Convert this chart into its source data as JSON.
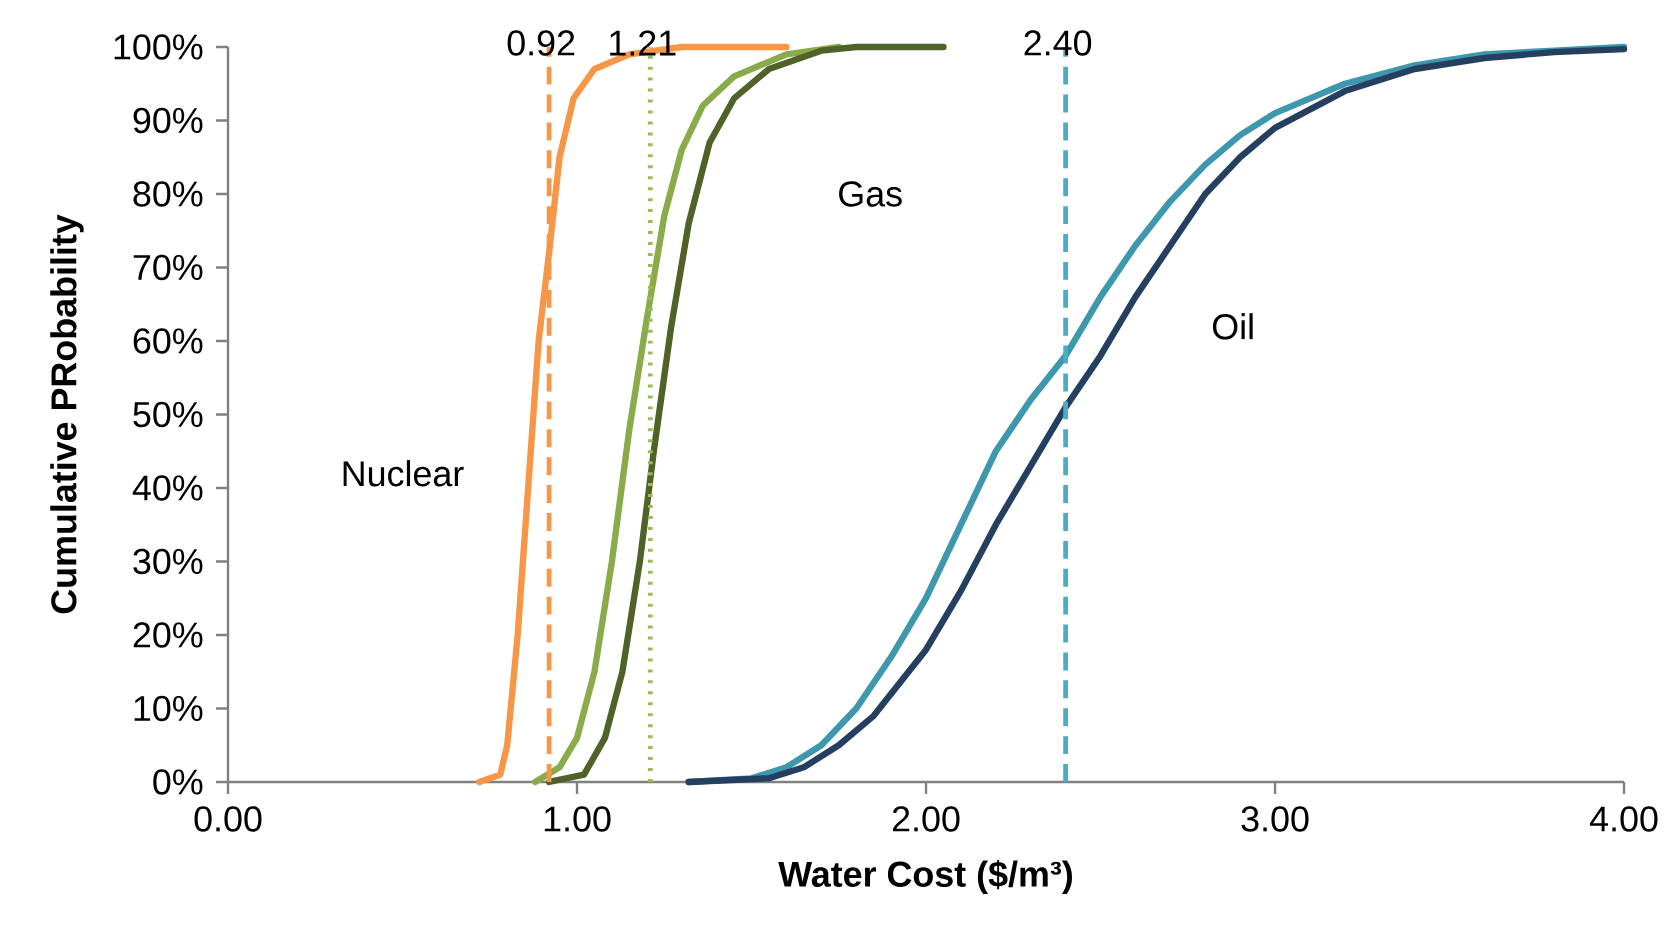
{
  "chart_data": {
    "type": "line",
    "xlabel": "Water Cost ($/m³)",
    "ylabel": "Cumulative PRobability",
    "xlim": [
      0,
      4
    ],
    "ylim": [
      0,
      100
    ],
    "xticks": [
      {
        "value": 0,
        "label": "0.00"
      },
      {
        "value": 1,
        "label": "1.00"
      },
      {
        "value": 2,
        "label": "2.00"
      },
      {
        "value": 3,
        "label": "3.00"
      },
      {
        "value": 4,
        "label": "4.00"
      }
    ],
    "yticks": [
      {
        "value": 0,
        "label": "0%"
      },
      {
        "value": 10,
        "label": "10%"
      },
      {
        "value": 20,
        "label": "20%"
      },
      {
        "value": 30,
        "label": "30%"
      },
      {
        "value": 40,
        "label": "40%"
      },
      {
        "value": 50,
        "label": "50%"
      },
      {
        "value": 60,
        "label": "60%"
      },
      {
        "value": 70,
        "label": "70%"
      },
      {
        "value": 80,
        "label": "80%"
      },
      {
        "value": 90,
        "label": "90%"
      },
      {
        "value": 100,
        "label": "100%"
      }
    ],
    "grid": false,
    "marker": "none",
    "line_style": "solid",
    "series": [
      {
        "color": "#f79646",
        "x": [
          0.72,
          0.78,
          0.8,
          0.83,
          0.86,
          0.89,
          0.92,
          0.95,
          0.99,
          1.05,
          1.15,
          1.3,
          1.6
        ],
        "values": [
          0,
          1,
          5,
          20,
          40,
          60,
          72,
          85,
          93,
          97,
          99,
          100,
          100
        ]
      },
      {
        "color": "#8aab4a",
        "x": [
          0.88,
          0.95,
          1.0,
          1.05,
          1.1,
          1.15,
          1.2,
          1.25,
          1.3,
          1.36,
          1.45,
          1.6,
          1.75
        ],
        "values": [
          0,
          2,
          6,
          15,
          30,
          48,
          63,
          77,
          86,
          92,
          96,
          99,
          100
        ]
      },
      {
        "color": "#4f6228",
        "x": [
          0.92,
          1.02,
          1.08,
          1.13,
          1.18,
          1.22,
          1.27,
          1.32,
          1.38,
          1.45,
          1.55,
          1.7,
          1.8,
          2.05
        ],
        "values": [
          0,
          1,
          6,
          15,
          30,
          45,
          62,
          76,
          87,
          93,
          97,
          99.5,
          100,
          100
        ]
      },
      {
        "color": "#3d97ad",
        "x": [
          1.32,
          1.5,
          1.6,
          1.7,
          1.8,
          1.9,
          2.0,
          2.1,
          2.2,
          2.3,
          2.4,
          2.5,
          2.6,
          2.7,
          2.8,
          2.9,
          3.0,
          3.2,
          3.4,
          3.6,
          3.8,
          4.0
        ],
        "values": [
          0,
          0.5,
          2,
          5,
          10,
          17,
          25,
          35,
          45,
          52,
          58,
          66,
          73,
          79,
          84,
          88,
          91,
          95,
          97.5,
          99,
          99.5,
          100
        ]
      },
      {
        "color": "#243f60",
        "x": [
          1.32,
          1.55,
          1.65,
          1.75,
          1.85,
          2.0,
          2.1,
          2.2,
          2.3,
          2.4,
          2.5,
          2.6,
          2.7,
          2.8,
          2.9,
          3.0,
          3.2,
          3.4,
          3.6,
          3.8,
          4.0
        ],
        "values": [
          0,
          0.5,
          2,
          5,
          9,
          18,
          26,
          35,
          43,
          51,
          58,
          66,
          73,
          80,
          85,
          89,
          94,
          97,
          98.5,
          99.3,
          99.7
        ]
      }
    ],
    "ref_lines": [
      {
        "axis": "x",
        "value": 0.92,
        "label": "0.92",
        "color": "#f79646",
        "line_style": "dashed"
      },
      {
        "axis": "x",
        "value": 1.21,
        "label": "1.21",
        "color": "#9bbb59",
        "line_style": "dotted"
      },
      {
        "axis": "x",
        "value": 2.4,
        "label": "2.40",
        "color": "#4bacc6",
        "line_style": "dashed"
      }
    ],
    "annotations": [
      "Nuclear",
      "Gas",
      "Oil"
    ]
  }
}
